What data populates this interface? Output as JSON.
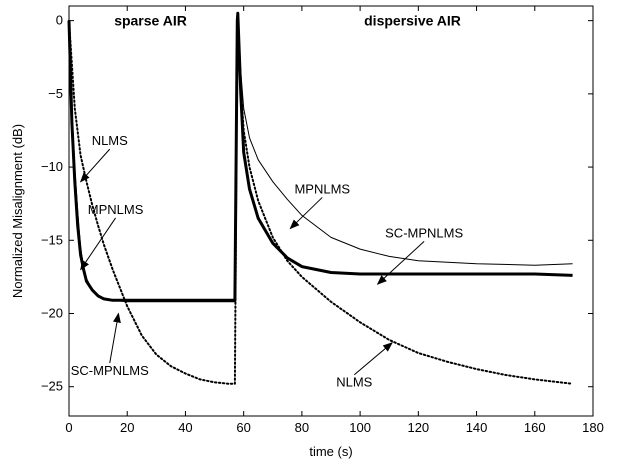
{
  "chart_data": {
    "type": "line",
    "title": "",
    "xlabel": "time (s)",
    "ylabel": "Normalized Misalignment (dB)",
    "xlim": [
      0,
      180
    ],
    "ylim": [
      -27,
      1
    ],
    "xticks": [
      0,
      20,
      40,
      60,
      80,
      100,
      120,
      140,
      160,
      180
    ],
    "yticks": [
      0,
      -5,
      -10,
      -15,
      -20,
      -25
    ],
    "grid": false,
    "legend": "none",
    "region_labels": [
      {
        "text": "sparse AIR",
        "x": 28,
        "y": 0
      },
      {
        "text": "dispersive AIR",
        "x": 118,
        "y": 0
      }
    ],
    "series": [
      {
        "name": "SC-MPNLMS",
        "style": "thick-solid",
        "x": [
          0,
          1,
          2,
          3,
          4,
          5,
          6,
          8,
          10,
          12,
          15,
          20,
          25,
          30,
          40,
          50,
          57,
          57.8,
          58,
          59,
          60,
          62,
          65,
          70,
          75,
          80,
          90,
          100,
          110,
          120,
          140,
          160,
          173
        ],
        "y": [
          0,
          -7,
          -11,
          -14,
          -16,
          -17,
          -17.8,
          -18.4,
          -18.8,
          -19,
          -19.1,
          -19.1,
          -19.1,
          -19.1,
          -19.1,
          -19.1,
          -19.1,
          0,
          0.5,
          -5,
          -9,
          -11.5,
          -13.5,
          -15.2,
          -16.2,
          -16.8,
          -17.2,
          -17.3,
          -17.3,
          -17.3,
          -17.3,
          -17.3,
          -17.4
        ]
      },
      {
        "name": "MPNLMS",
        "style": "thin-solid",
        "x": [
          0,
          1,
          2,
          3,
          4,
          5,
          6,
          8,
          10,
          12,
          15,
          20,
          30,
          40,
          50,
          57,
          57.8,
          58,
          59,
          60,
          62,
          65,
          70,
          75,
          80,
          90,
          100,
          110,
          120,
          140,
          160,
          173
        ],
        "y": [
          0,
          -6,
          -10,
          -13,
          -15.5,
          -16.8,
          -17.6,
          -18.4,
          -18.8,
          -19,
          -19.1,
          -19.2,
          -19.2,
          -19.2,
          -19.2,
          -19.2,
          0,
          0.5,
          -3.5,
          -6,
          -8,
          -9.5,
          -11,
          -12.2,
          -13.3,
          -14.8,
          -15.6,
          -16.1,
          -16.4,
          -16.6,
          -16.7,
          -16.6
        ]
      },
      {
        "name": "NLMS",
        "style": "dotted",
        "x": [
          0,
          2,
          4,
          6,
          8,
          10,
          12,
          15,
          20,
          25,
          30,
          35,
          40,
          45,
          50,
          55,
          57,
          57.8,
          58,
          59,
          60,
          62,
          65,
          70,
          75,
          80,
          90,
          100,
          110,
          120,
          130,
          140,
          150,
          160,
          173
        ],
        "y": [
          0,
          -6,
          -9.2,
          -11,
          -12.6,
          -14,
          -15.3,
          -17,
          -19.5,
          -21.5,
          -22.8,
          -23.6,
          -24.1,
          -24.5,
          -24.7,
          -24.8,
          -24.8,
          0,
          0.3,
          -4.5,
          -7.5,
          -10,
          -12.3,
          -14.8,
          -16.4,
          -17.5,
          -19.2,
          -20.6,
          -21.8,
          -22.7,
          -23.3,
          -23.8,
          -24.2,
          -24.5,
          -24.8
        ]
      }
    ],
    "annotations": [
      {
        "text": "NLMS",
        "text_x": 14,
        "text_y": -8.5,
        "arrow_to_x": 4,
        "arrow_to_y": -11
      },
      {
        "text": "MPNLMS",
        "text_x": 16,
        "text_y": -13.2,
        "arrow_to_x": 4,
        "arrow_to_y": -17
      },
      {
        "text": "SC-MPNLMS",
        "text_x": 14,
        "text_y": -24.2,
        "arrow_to_x": 17,
        "arrow_to_y": -20
      },
      {
        "text": "MPNLMS",
        "text_x": 87,
        "text_y": -11.8,
        "arrow_to_x": 76,
        "arrow_to_y": -14.2
      },
      {
        "text": "SC-MPNLMS",
        "text_x": 122,
        "text_y": -14.8,
        "arrow_to_x": 106,
        "arrow_to_y": -18
      },
      {
        "text": "NLMS",
        "text_x": 98,
        "text_y": -25,
        "arrow_to_x": 111,
        "arrow_to_y": -22
      }
    ]
  }
}
